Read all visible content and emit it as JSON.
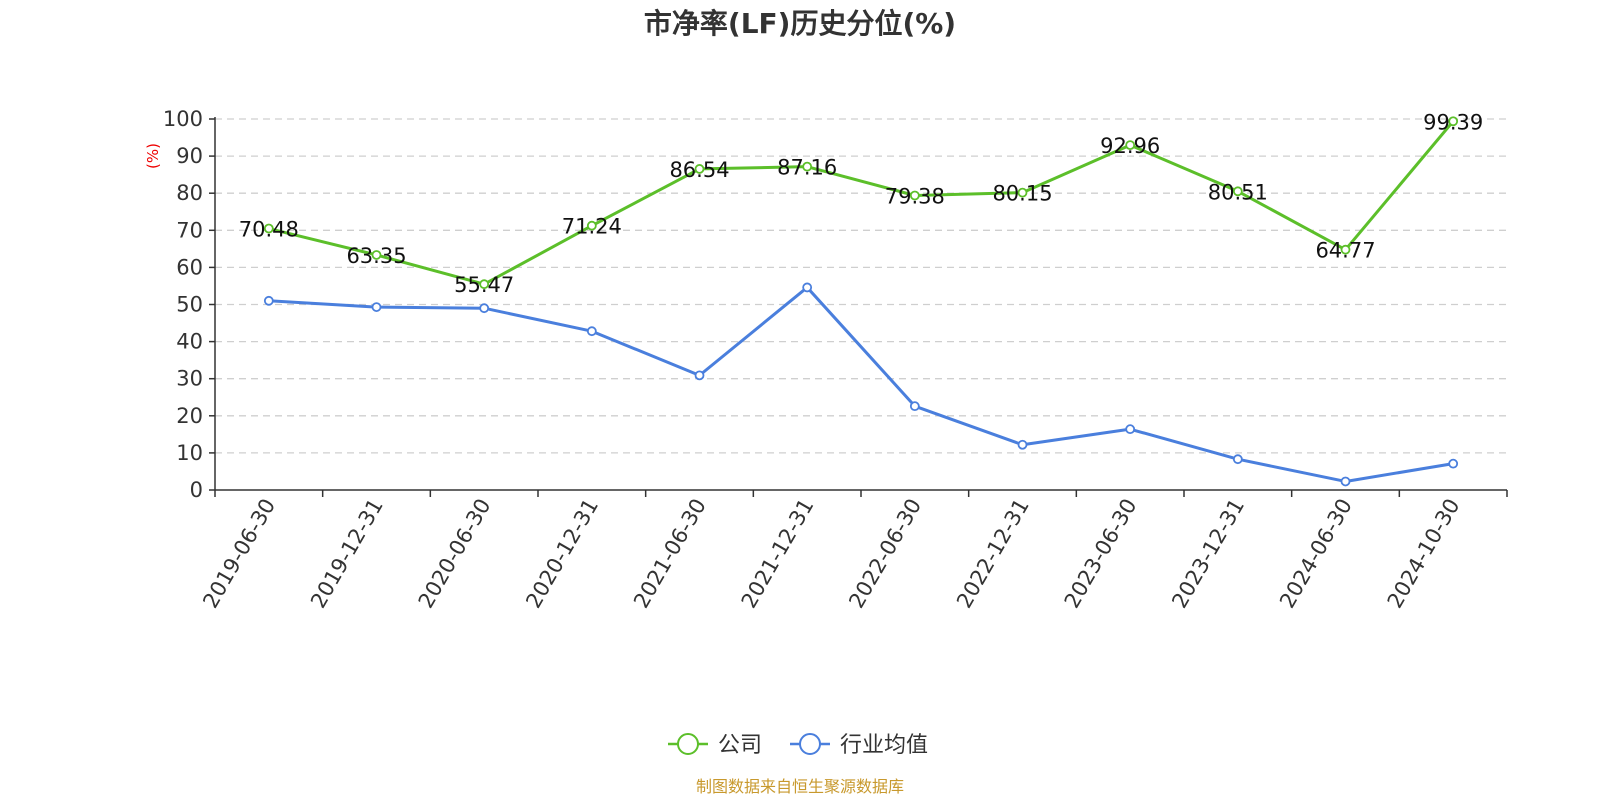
{
  "chart_data": {
    "type": "line",
    "title": "市净率(LF)历史分位(%)",
    "ylabel": "(%)",
    "xlabel": "",
    "ylim": [
      0,
      100
    ],
    "yticks": [
      0,
      10,
      20,
      30,
      40,
      50,
      60,
      70,
      80,
      90,
      100
    ],
    "grid": true,
    "legend_position": "bottom-center",
    "categories": [
      "2019-06-30",
      "2019-12-31",
      "2020-06-30",
      "2020-12-31",
      "2021-06-30",
      "2021-12-31",
      "2022-06-30",
      "2022-12-31",
      "2023-06-30",
      "2023-12-31",
      "2024-06-30",
      "2024-10-30"
    ],
    "series": [
      {
        "name": "公司",
        "color": "#5cbf2a",
        "show_labels": true,
        "values": [
          70.48,
          63.35,
          55.47,
          71.24,
          86.54,
          87.16,
          79.38,
          80.15,
          92.96,
          80.51,
          64.77,
          99.39
        ],
        "labels": [
          "70.48",
          "63.35",
          "55.47",
          "71.24",
          "86.54",
          "87.16",
          "79.38",
          "80.15",
          "92.96",
          "80.51",
          "64.77",
          "99.39"
        ]
      },
      {
        "name": "行业均值",
        "color": "#4a7fdd",
        "show_labels": false,
        "values": [
          51.0,
          49.3,
          49.0,
          42.8,
          30.9,
          54.6,
          22.6,
          12.2,
          16.4,
          8.3,
          2.3,
          7.1
        ]
      }
    ],
    "source": "制图数据来自恒生聚源数据库"
  }
}
